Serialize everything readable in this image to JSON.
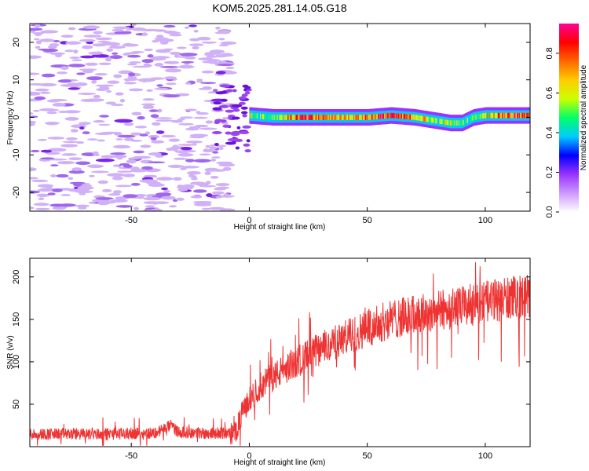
{
  "title": "KOM5.2025.281.14.05.G18",
  "chart_data": [
    {
      "type": "heatmap",
      "name": "spectrogram",
      "xlabel": "Height of straight line (km)",
      "ylabel": "Frequency (Hz)",
      "xlim": [
        -93,
        119
      ],
      "ylim": [
        -25,
        25
      ],
      "xticks": [
        -50,
        0,
        50,
        100
      ],
      "yticks": [
        -20,
        -10,
        0,
        10,
        20
      ],
      "xtick_labels": [
        "-50",
        "0",
        "50",
        "100"
      ],
      "ytick_labels": [
        "-20",
        "-10",
        "0",
        "10",
        "20"
      ],
      "colorbar": {
        "label": "Normalized spectral amplitude",
        "range": [
          0,
          0.95
        ],
        "ticks": [
          0.0,
          0.2,
          0.4,
          0.6,
          0.8
        ],
        "tick_labels": [
          "0.0",
          "0.2",
          "0.4",
          "0.6",
          "0.8"
        ],
        "colors": [
          "#ffffff",
          "#cc99ff",
          "#9933ff",
          "#0000ff",
          "#00ccff",
          "#00ff66",
          "#ccff00",
          "#ffcc00",
          "#ff6600",
          "#ff0000",
          "#ff0099"
        ]
      },
      "ridge": {
        "description_values": "dominant frequency vs height",
        "x": [
          0,
          10,
          20,
          30,
          40,
          50,
          60,
          70,
          80,
          85,
          90,
          95,
          100,
          110,
          119
        ],
        "freq": [
          0.5,
          0.0,
          0.0,
          0.0,
          0.0,
          0.0,
          0.5,
          0.0,
          -1.0,
          -1.5,
          -1.5,
          0.0,
          0.5,
          0.5,
          0.5
        ],
        "amplitude": [
          0.55,
          0.5,
          0.8,
          0.75,
          0.7,
          0.75,
          0.85,
          0.7,
          0.5,
          0.6,
          0.45,
          0.5,
          0.65,
          0.8,
          0.75
        ]
      },
      "noise_region_x": [
        -93,
        -8
      ]
    },
    {
      "type": "line",
      "name": "snr",
      "xlabel": "Height of straight line (km)",
      "ylabel": "SNR (v/v)",
      "xlim": [
        -93,
        119
      ],
      "ylim": [
        0,
        222
      ],
      "xticks": [
        -50,
        0,
        50,
        100
      ],
      "yticks": [
        50,
        100,
        150,
        200
      ],
      "xtick_labels": [
        "-50",
        "0",
        "50",
        "100"
      ],
      "ytick_labels": [
        "50",
        "100",
        "150",
        "200"
      ],
      "color": "#ee3333",
      "trend": {
        "x": [
          -93,
          -60,
          -40,
          -33,
          -30,
          -20,
          -10,
          -6,
          -3,
          0,
          5,
          10,
          20,
          30,
          40,
          50,
          60,
          70,
          80,
          90,
          100,
          110,
          119
        ],
        "y": [
          15,
          15,
          16,
          25,
          17,
          16,
          16,
          15,
          40,
          55,
          72,
          82,
          100,
          115,
          127,
          140,
          150,
          155,
          160,
          165,
          170,
          175,
          178
        ]
      }
    }
  ]
}
